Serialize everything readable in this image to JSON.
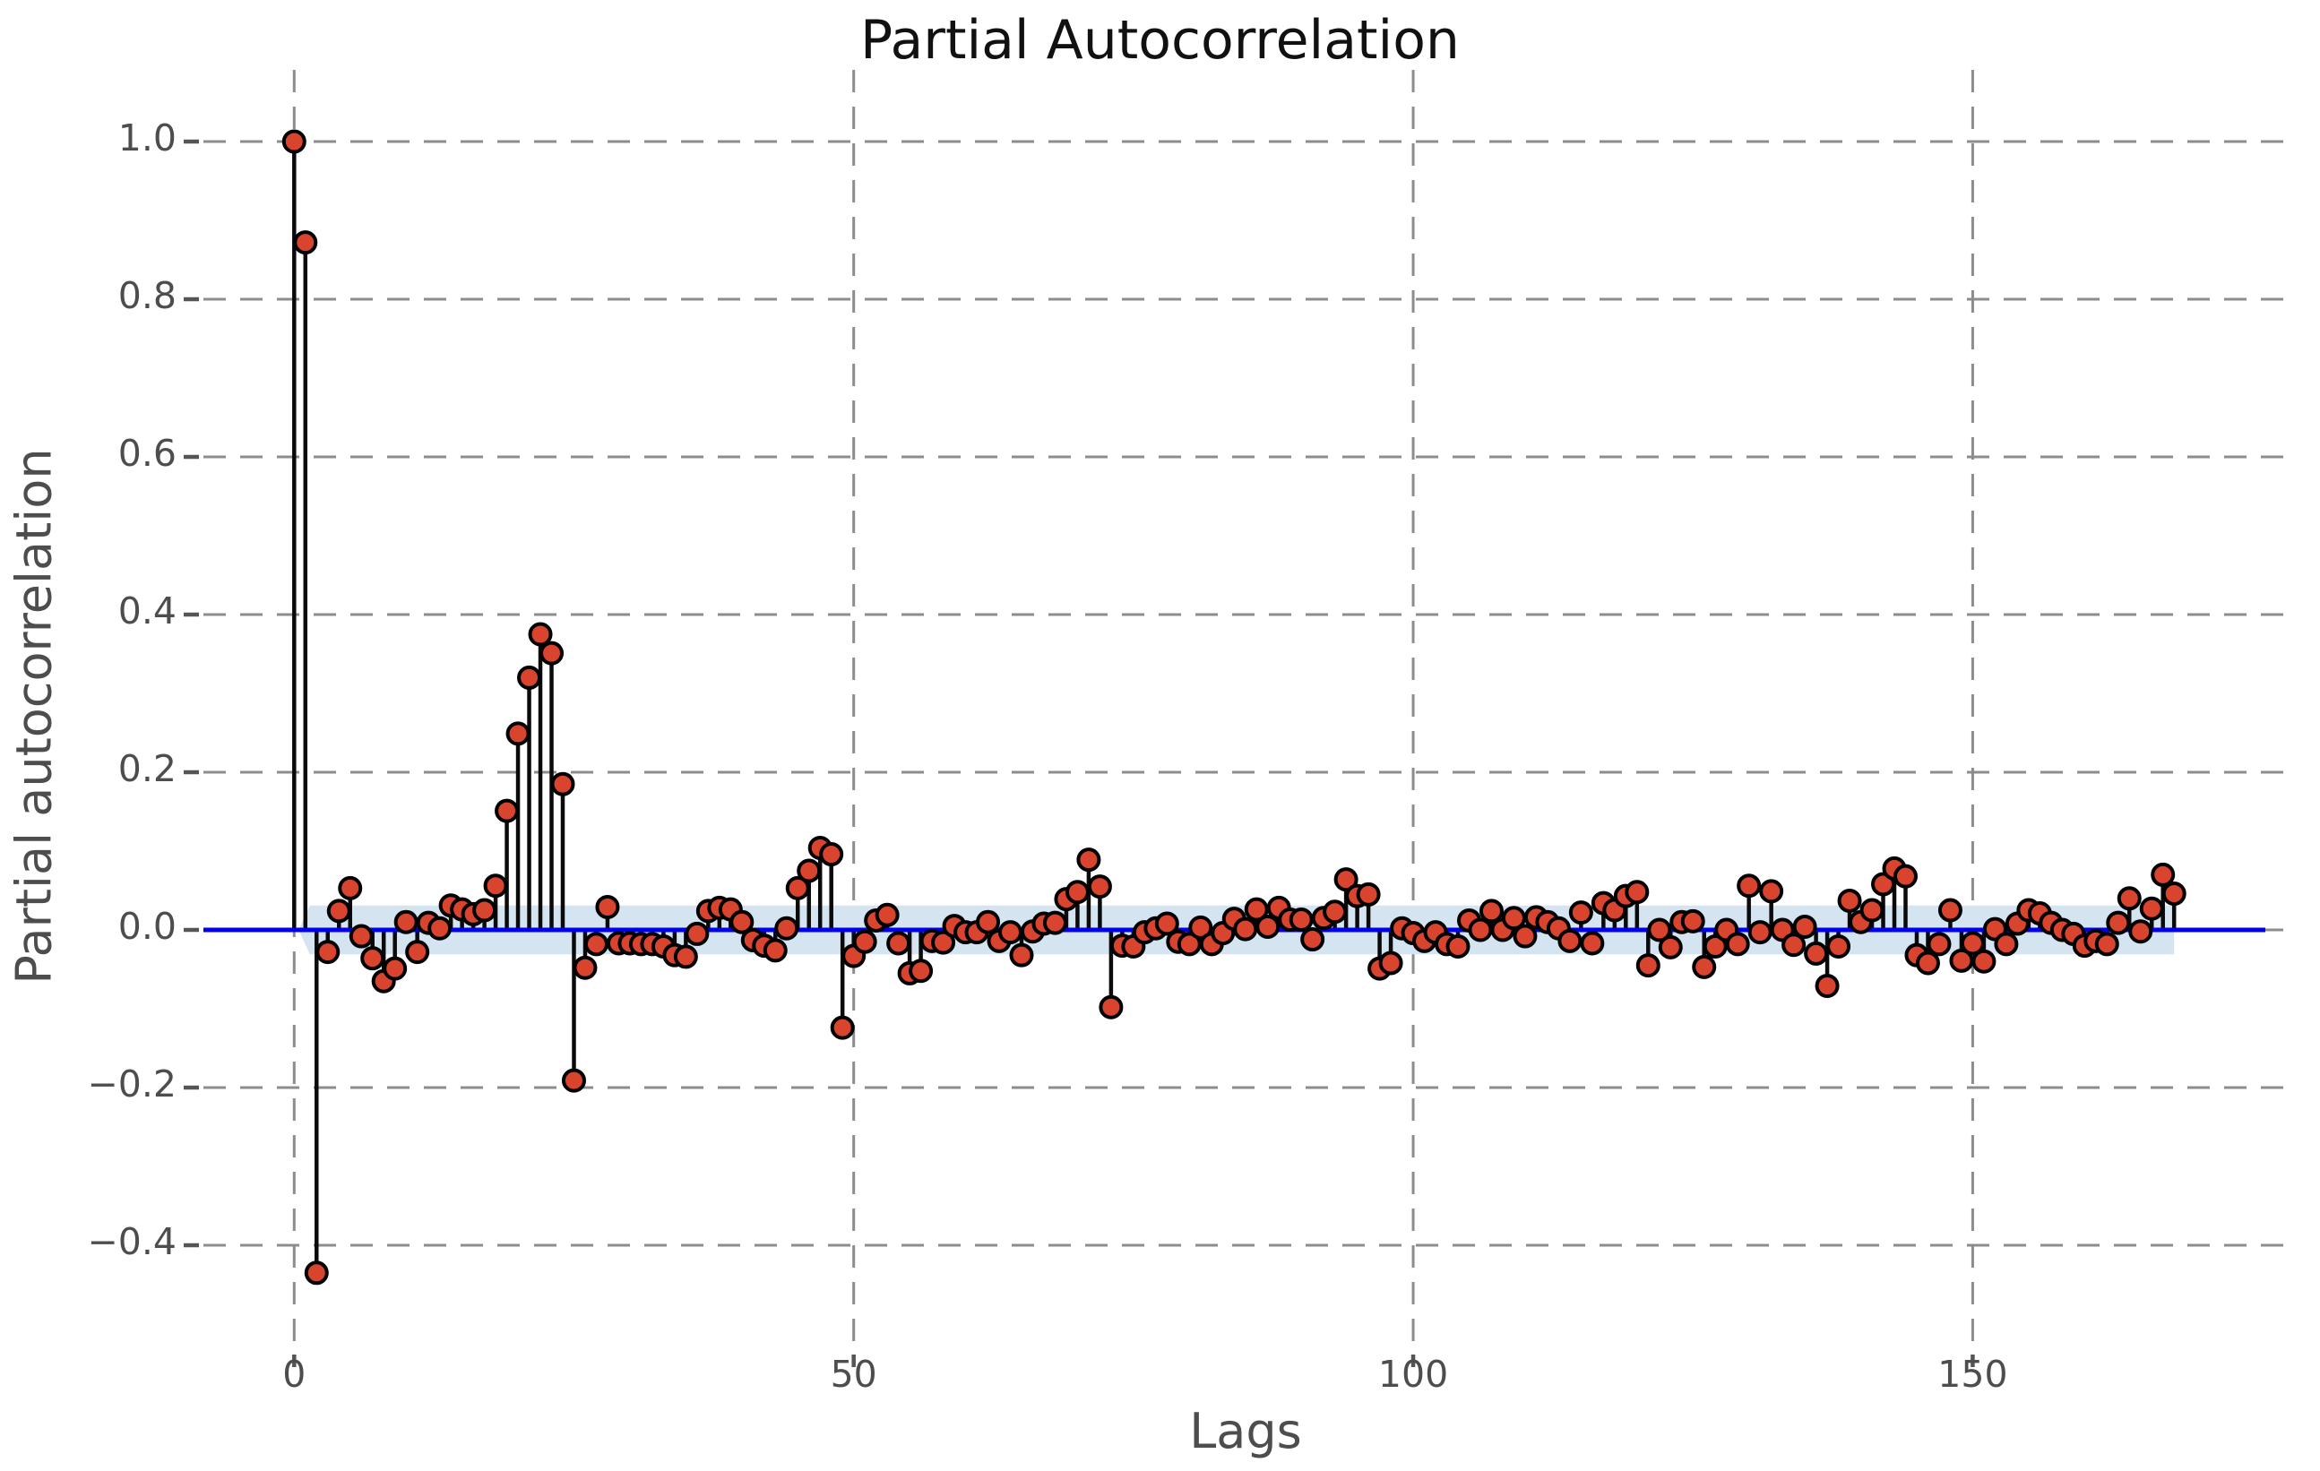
{
  "chart_data": {
    "type": "scatter",
    "subtype": "stem-lollipop-pacf",
    "title": "Partial Autocorrelation",
    "xlabel": "Lags",
    "ylabel": "Partial autocorrelation",
    "x_start": 0,
    "x_step": 1,
    "values": [
      1.0,
      0.872,
      -0.435,
      -0.028,
      0.024,
      0.053,
      -0.008,
      -0.036,
      -0.065,
      -0.049,
      0.01,
      -0.028,
      0.009,
      0.002,
      0.031,
      0.026,
      0.02,
      0.025,
      0.056,
      0.151,
      0.249,
      0.32,
      0.375,
      0.351,
      0.185,
      -0.191,
      -0.048,
      -0.018,
      0.029,
      -0.017,
      -0.017,
      -0.018,
      -0.018,
      -0.021,
      -0.032,
      -0.034,
      -0.005,
      0.024,
      0.028,
      0.026,
      0.01,
      -0.013,
      -0.02,
      -0.026,
      0.002,
      0.053,
      0.075,
      0.104,
      0.096,
      -0.124,
      -0.033,
      -0.015,
      0.012,
      0.019,
      -0.017,
      -0.055,
      -0.052,
      -0.014,
      -0.016,
      0.005,
      -0.003,
      -0.003,
      0.01,
      -0.014,
      -0.003,
      -0.032,
      -0.002,
      0.008,
      0.009,
      0.039,
      0.048,
      0.089,
      0.055,
      -0.098,
      -0.02,
      -0.021,
      -0.003,
      0.002,
      0.008,
      -0.015,
      -0.018,
      0.003,
      -0.018,
      -0.004,
      0.014,
      0.001,
      0.026,
      0.004,
      0.028,
      0.013,
      0.013,
      -0.012,
      0.015,
      0.023,
      0.064,
      0.043,
      0.045,
      -0.049,
      -0.042,
      0.002,
      -0.004,
      -0.014,
      -0.003,
      -0.018,
      -0.021,
      0.012,
      0.0,
      0.024,
      0.0,
      0.015,
      -0.008,
      0.016,
      0.01,
      0.002,
      -0.014,
      0.022,
      -0.017,
      0.034,
      0.025,
      0.043,
      0.048,
      -0.045,
      0.0,
      -0.022,
      0.01,
      0.011,
      -0.047,
      -0.021,
      0.0,
      -0.018,
      0.056,
      -0.003,
      0.049,
      0.0,
      -0.019,
      0.004,
      -0.03,
      -0.071,
      -0.021,
      0.037,
      0.01,
      0.025,
      0.058,
      0.078,
      0.068,
      -0.032,
      -0.042,
      -0.018,
      0.025,
      -0.039,
      -0.017,
      -0.04,
      0.001,
      -0.018,
      0.008,
      0.025,
      0.021,
      0.009,
      0.0,
      -0.005,
      -0.02,
      -0.014,
      -0.018,
      0.009,
      0.04,
      -0.002,
      0.027,
      0.07,
      0.046
    ],
    "x_ticks": [
      {
        "value": 0,
        "label": "0"
      },
      {
        "value": 50,
        "label": "50"
      },
      {
        "value": 100,
        "label": "100"
      },
      {
        "value": 150,
        "label": "150"
      }
    ],
    "y_ticks": [
      {
        "value": 1.0,
        "label": "1.0"
      },
      {
        "value": 0.8,
        "label": "0.8"
      },
      {
        "value": 0.6,
        "label": "0.6"
      },
      {
        "value": 0.4,
        "label": "0.4"
      },
      {
        "value": 0.2,
        "label": "0.2"
      },
      {
        "value": 0.0,
        "label": "0.0"
      },
      {
        "value": -0.2,
        "label": "−0.2"
      },
      {
        "value": -0.4,
        "label": "−0.4"
      }
    ],
    "xlim": [
      -8.1,
      178.3
    ],
    "ylim": [
      -0.539,
      1.091
    ],
    "grid": "dashed-both-axes",
    "legend": "none",
    "confidence_band": {
      "halfwidth": 0.031,
      "from_lag": 0.4,
      "full_from_lag": 1.4,
      "to_lag": 168
    },
    "zero_line": {
      "y": 0.0,
      "color": "#0000ee"
    },
    "colors": {
      "marker_fill": "#d9442f",
      "marker_edge": "#000000",
      "stem": "#0a0a0a",
      "band": "#d4e4f1",
      "zero_line": "#0000ee",
      "grid": "#8c8c8c",
      "tick_mark": "#555555",
      "tick_text": "#4d4d4d",
      "title_text": "#111111"
    }
  }
}
